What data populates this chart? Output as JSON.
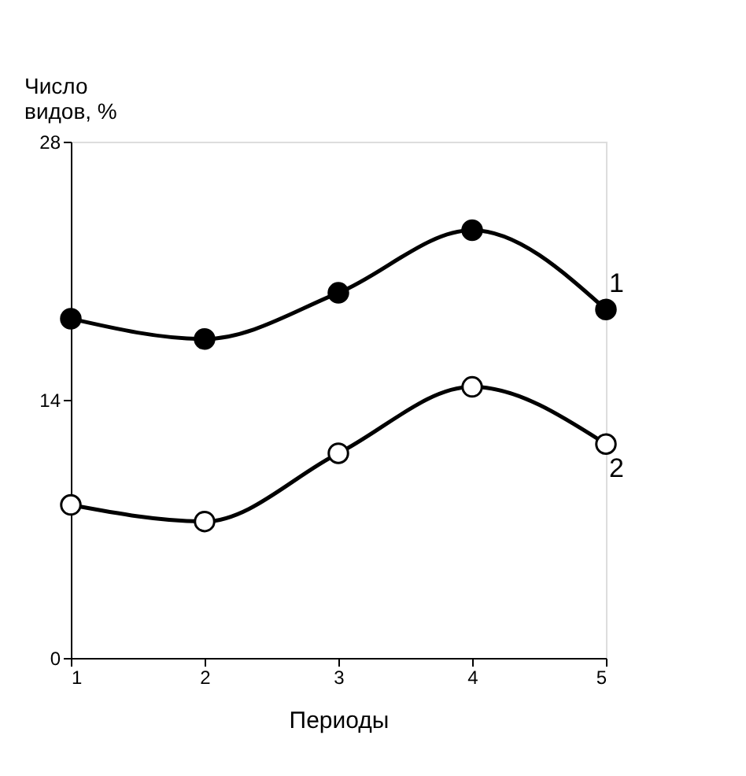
{
  "chart_data": {
    "type": "line",
    "xlabel": "Периоды",
    "ylabel": "Число видов, %",
    "x": [
      1,
      2,
      3,
      4,
      5
    ],
    "series": [
      {
        "name": "1",
        "color": "#000000",
        "values": [
          18.4,
          17.3,
          19.8,
          23.2,
          18.9
        ]
      },
      {
        "name": "2",
        "color": "#000000",
        "values": [
          8.3,
          7.4,
          11.1,
          14.7,
          11.6
        ]
      }
    ],
    "xlim": [
      1,
      5
    ],
    "xticks": [
      1,
      2,
      3,
      4,
      5
    ],
    "ylim": [
      0,
      28
    ],
    "yticks": [
      0,
      14,
      28
    ],
    "marker": "circle",
    "line_style": "solid",
    "grid": false
  }
}
